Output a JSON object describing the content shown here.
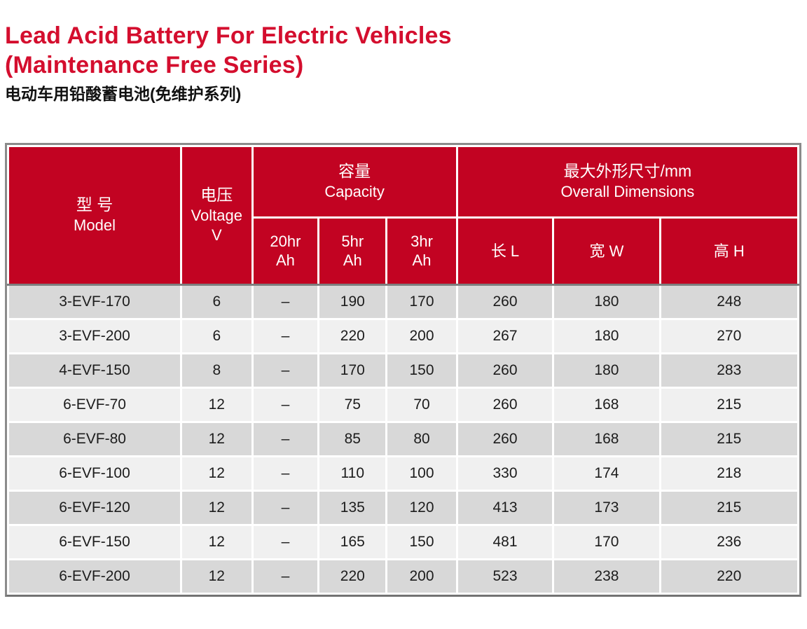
{
  "page": {
    "title_line1": "Lead Acid Battery For Electric Vehicles",
    "title_line2": "(Maintenance Free Series)",
    "subtitle_cn": "电动车用铅酸蓄电池(免维护系列)"
  },
  "colors": {
    "title_red": "#d40e2e",
    "header_red": "#c20322",
    "row_dark": "#d8d8d8",
    "row_light": "#f0f0f0",
    "outer_border": "#8b8b8b",
    "header_divider": "#7e7e7e"
  },
  "table": {
    "headers": {
      "model_cn": "型 号",
      "model_en": "Model",
      "voltage_cn": "电压",
      "voltage_en": "Voltage",
      "voltage_unit": "V",
      "capacity_cn": "容量",
      "capacity_en": "Capacity",
      "dimensions_cn": "最大外形尺寸/mm",
      "dimensions_en": "Overall Dimensions",
      "sub_20hr_l1": "20hr",
      "sub_20hr_l2": "Ah",
      "sub_5hr_l1": "5hr",
      "sub_5hr_l2": "Ah",
      "sub_3hr_l1": "3hr",
      "sub_3hr_l2": "Ah",
      "sub_length": "长 L",
      "sub_width": "宽 W",
      "sub_height": "高 H"
    },
    "column_keys": [
      "model",
      "voltage",
      "capacity-20hr",
      "capacity-5hr",
      "capacity-3hr",
      "length",
      "width",
      "height"
    ],
    "rows": [
      [
        "3-EVF-170",
        "6",
        "–",
        "190",
        "170",
        "260",
        "180",
        "248"
      ],
      [
        "3-EVF-200",
        "6",
        "–",
        "220",
        "200",
        "267",
        "180",
        "270"
      ],
      [
        "4-EVF-150",
        "8",
        "–",
        "170",
        "150",
        "260",
        "180",
        "283"
      ],
      [
        "6-EVF-70",
        "12",
        "–",
        "75",
        "70",
        "260",
        "168",
        "215"
      ],
      [
        "6-EVF-80",
        "12",
        "–",
        "85",
        "80",
        "260",
        "168",
        "215"
      ],
      [
        "6-EVF-100",
        "12",
        "–",
        "110",
        "100",
        "330",
        "174",
        "218"
      ],
      [
        "6-EVF-120",
        "12",
        "–",
        "135",
        "120",
        "413",
        "173",
        "215"
      ],
      [
        "6-EVF-150",
        "12",
        "–",
        "165",
        "150",
        "481",
        "170",
        "236"
      ],
      [
        "6-EVF-200",
        "12",
        "–",
        "220",
        "200",
        "523",
        "238",
        "220"
      ]
    ]
  }
}
